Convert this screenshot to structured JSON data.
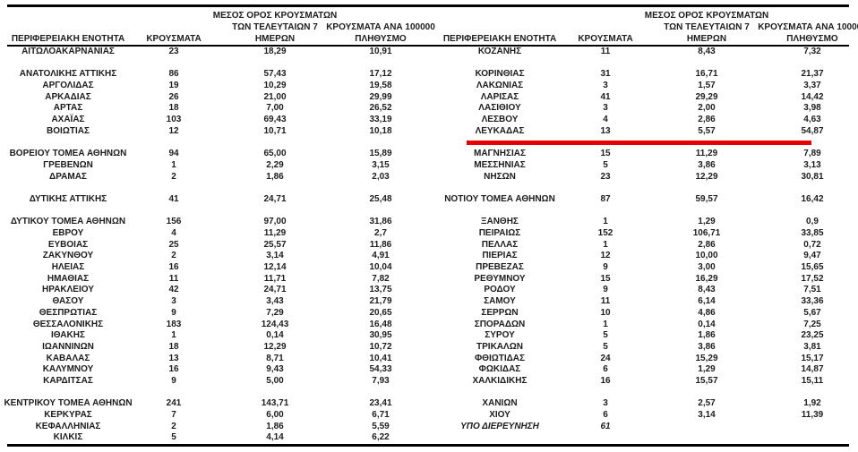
{
  "colors": {
    "text": "#1c1c1c",
    "rule": "#000000",
    "highlight_red": "#e60000"
  },
  "header": {
    "region": "ΠΕΡΙΦΕΡΕΙΑΚΗ ΕΝΟΤΗΤΑ",
    "cases": "ΚΡΟΥΣΜΑΤΑ",
    "avg7_lines": [
      "ΜΕΣΟΣ ΟΡΟΣ ΚΡΟΥΣΜΑΤΩΝ",
      "ΤΩΝ ΤΕΛΕΥΤΑΙΩΝ 7",
      "ΗΜΕΡΩΝ"
    ],
    "per100k_lines": [
      "ΚΡΟΥΣΜΑΤΑ ΑΝΑ 100000",
      "ΠΛΗΘΥΣΜΟ"
    ]
  },
  "left_table": {
    "rows": [
      [
        "ΑΙΤΩΛΟΑΚΑΡΝΑΝΙΑΣ",
        "23",
        "18,29",
        "10,91"
      ],
      [
        "",
        "",
        "",
        ""
      ],
      [
        "ΑΝΑΤΟΛΙΚΗΣ ΑΤΤΙΚΗΣ",
        "86",
        "57,43",
        "17,12"
      ],
      [
        "ΑΡΓΟΛΙΔΑΣ",
        "19",
        "10,29",
        "19,58"
      ],
      [
        "ΑΡΚΑΔΙΑΣ",
        "26",
        "21,00",
        "29,99"
      ],
      [
        "ΑΡΤΑΣ",
        "18",
        "7,00",
        "26,52"
      ],
      [
        "ΑΧΑΪΑΣ",
        "103",
        "69,43",
        "33,19"
      ],
      [
        "ΒΟΙΩΤΙΑΣ",
        "12",
        "10,71",
        "10,18"
      ],
      [
        "",
        "",
        "",
        ""
      ],
      [
        "ΒΟΡΕΙΟΥ ΤΟΜΕΑ ΑΘΗΝΩΝ",
        "94",
        "65,00",
        "15,89"
      ],
      [
        "ΓΡΕΒΕΝΩΝ",
        "1",
        "2,29",
        "3,15"
      ],
      [
        "ΔΡΑΜΑΣ",
        "2",
        "1,86",
        "2,03"
      ],
      [
        "",
        "",
        "",
        ""
      ],
      [
        "ΔΥΤΙΚΗΣ ΑΤΤΙΚΗΣ",
        "41",
        "24,71",
        "25,48"
      ],
      [
        "",
        "",
        "",
        ""
      ],
      [
        "ΔΥΤΙΚΟΥ ΤΟΜΕΑ ΑΘΗΝΩΝ",
        "156",
        "97,00",
        "31,86"
      ],
      [
        "ΕΒΡΟΥ",
        "4",
        "11,29",
        "2,7"
      ],
      [
        "ΕΥΒΟΙΑΣ",
        "25",
        "25,57",
        "11,86"
      ],
      [
        "ΖΑΚΥΝΘΟΥ",
        "2",
        "3,14",
        "4,91"
      ],
      [
        "ΗΛΕΙΑΣ",
        "16",
        "12,14",
        "10,04"
      ],
      [
        "ΗΜΑΘΙΑΣ",
        "11",
        "11,71",
        "7,82"
      ],
      [
        "ΗΡΑΚΛΕΙΟΥ",
        "42",
        "24,71",
        "13,75"
      ],
      [
        "ΘΑΣΟΥ",
        "3",
        "3,43",
        "21,79"
      ],
      [
        "ΘΕΣΠΡΩΤΙΑΣ",
        "9",
        "7,29",
        "20,65"
      ],
      [
        "ΘΕΣΣΑΛΟΝΙΚΗΣ",
        "183",
        "124,43",
        "16,48"
      ],
      [
        "ΙΘΑΚΗΣ",
        "1",
        "0,14",
        "30,95"
      ],
      [
        "ΙΩΑΝΝΙΝΩΝ",
        "18",
        "12,29",
        "10,72"
      ],
      [
        "ΚΑΒΑΛΑΣ",
        "13",
        "8,71",
        "10,41"
      ],
      [
        "ΚΑΛΥΜΝΟΥ",
        "16",
        "9,43",
        "54,33"
      ],
      [
        "ΚΑΡΔΙΤΣΑΣ",
        "9",
        "5,00",
        "7,93"
      ],
      [
        "",
        "",
        "",
        ""
      ],
      [
        "ΚΕΝΤΡΙΚΟΥ ΤΟΜΕΑ ΑΘΗΝΩΝ",
        "241",
        "143,71",
        "23,41"
      ],
      [
        "ΚΕΡΚΥΡΑΣ",
        "7",
        "6,00",
        "6,71"
      ],
      [
        "ΚΕΦΑΛΛΗΝΙΑΣ",
        "2",
        "1,86",
        "5,59"
      ],
      [
        "ΚΙΛΚΙΣ",
        "5",
        "4,14",
        "6,22"
      ]
    ],
    "italic_row_indices": []
  },
  "right_table": {
    "rows": [
      [
        "ΚΟΖΑΝΗΣ",
        "11",
        "8,43",
        "7,32"
      ],
      [
        "",
        "",
        "",
        ""
      ],
      [
        "ΚΟΡΙΝΘΙΑΣ",
        "31",
        "16,71",
        "21,37"
      ],
      [
        "ΛΑΚΩΝΙΑΣ",
        "3",
        "1,57",
        "3,37"
      ],
      [
        "ΛΑΡΙΣΑΣ",
        "41",
        "29,29",
        "14,42"
      ],
      [
        "ΛΑΣΙΘΙΟΥ",
        "3",
        "2,00",
        "3,98"
      ],
      [
        "ΛΕΣΒΟΥ",
        "4",
        "2,86",
        "4,63"
      ],
      [
        "ΛΕΥΚΑΔΑΣ",
        "13",
        "5,57",
        "54,87"
      ],
      [
        "",
        "",
        "",
        ""
      ],
      [
        "ΜΑΓΝΗΣΙΑΣ",
        "15",
        "11,29",
        "7,89"
      ],
      [
        "ΜΕΣΣΗΝΙΑΣ",
        "5",
        "3,86",
        "3,13"
      ],
      [
        "ΝΗΣΩΝ",
        "23",
        "12,29",
        "30,81"
      ],
      [
        "",
        "",
        "",
        ""
      ],
      [
        "ΝΟΤΙΟΥ ΤΟΜΕΑ ΑΘΗΝΩΝ",
        "87",
        "59,57",
        "16,42"
      ],
      [
        "",
        "",
        "",
        ""
      ],
      [
        "ΞΑΝΘΗΣ",
        "1",
        "1,29",
        "0,9"
      ],
      [
        "ΠΕΙΡΑΙΩΣ",
        "152",
        "106,71",
        "33,85"
      ],
      [
        "ΠΕΛΛΑΣ",
        "1",
        "2,86",
        "0,72"
      ],
      [
        "ΠΙΕΡΙΑΣ",
        "12",
        "10,00",
        "9,47"
      ],
      [
        "ΠΡΕΒΕΖΑΣ",
        "9",
        "3,00",
        "15,65"
      ],
      [
        "ΡΕΘΥΜΝΟΥ",
        "15",
        "16,29",
        "17,52"
      ],
      [
        "ΡΟΔΟΥ",
        "9",
        "8,43",
        "7,51"
      ],
      [
        "ΣΑΜΟΥ",
        "11",
        "6,14",
        "33,36"
      ],
      [
        "ΣΕΡΡΩΝ",
        "10",
        "4,86",
        "5,67"
      ],
      [
        "ΣΠΟΡΑΔΩΝ",
        "1",
        "0,14",
        "7,25"
      ],
      [
        "ΣΥΡΟΥ",
        "5",
        "1,86",
        "23,25"
      ],
      [
        "ΤΡΙΚΑΛΩΝ",
        "5",
        "3,86",
        "3,81"
      ],
      [
        "ΦΘΙΩΤΙΔΑΣ",
        "24",
        "15,29",
        "15,17"
      ],
      [
        "ΦΩΚΙΔΑΣ",
        "6",
        "1,29",
        "14,87"
      ],
      [
        "ΧΑΛΚΙΔΙΚΗΣ",
        "16",
        "15,57",
        "15,11"
      ],
      [
        "",
        "",
        "",
        ""
      ],
      [
        "ΧΑΝΙΩΝ",
        "3",
        "2,57",
        "1,92"
      ],
      [
        "ΧΙΟΥ",
        "6",
        "3,14",
        "11,39"
      ],
      [
        "ΥΠΟ ΔΙΕΡΕΥΝΗΣΗ",
        "61",
        "",
        ""
      ],
      [
        "",
        "",
        "",
        ""
      ]
    ],
    "italic_row_indices": [
      33
    ]
  },
  "highlight": {
    "color": "#e60000",
    "under_row": "ΛΕΥΚΑΔΑΣ"
  }
}
